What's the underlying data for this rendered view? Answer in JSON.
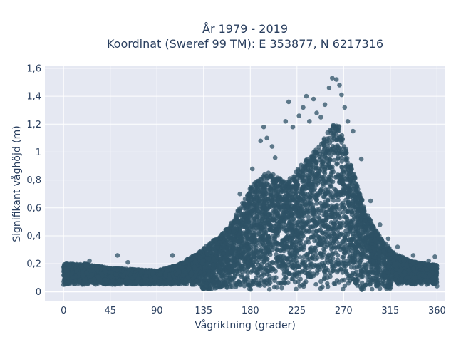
{
  "chart_data": {
    "type": "scatter",
    "title": "År 1979 - 2019",
    "subtitle": "Koordinat (Sweref 99 TM): E 353877, N 6217316",
    "xlabel": "Vågriktning (grader)",
    "ylabel": "Signifikant våghöjd (m)",
    "xlim": [
      -18,
      368
    ],
    "ylim": [
      -0.07,
      1.62
    ],
    "x_ticks": [
      0,
      45,
      90,
      135,
      180,
      225,
      270,
      315,
      360
    ],
    "x_tick_labels": [
      "0",
      "45",
      "90",
      "135",
      "180",
      "225",
      "270",
      "315",
      "360"
    ],
    "y_ticks": [
      0,
      0.2,
      0.4,
      0.6,
      0.8,
      1.0,
      1.2,
      1.4,
      1.6
    ],
    "y_tick_labels": [
      "0",
      "0,2",
      "0,4",
      "0,6",
      "0,8",
      "1",
      "1,2",
      "1,4",
      "1,6"
    ],
    "grid": true,
    "colors": {
      "marker": "#2e5266",
      "plot_bg": "#e5e8f2"
    },
    "envelope": {
      "x": [
        0,
        20,
        45,
        90,
        110,
        130,
        150,
        160,
        170,
        180,
        190,
        200,
        210,
        220,
        230,
        240,
        250,
        255,
        260,
        265,
        270,
        275,
        280,
        290,
        300,
        310,
        320,
        335,
        350,
        360
      ],
      "y_max": [
        0.2,
        0.2,
        0.17,
        0.15,
        0.19,
        0.28,
        0.4,
        0.47,
        0.6,
        0.75,
        0.82,
        0.87,
        0.8,
        0.82,
        0.92,
        1.0,
        1.08,
        1.15,
        1.2,
        1.2,
        1.1,
        0.95,
        0.85,
        0.6,
        0.45,
        0.35,
        0.27,
        0.22,
        0.2,
        0.19
      ]
    },
    "outliers": [
      {
        "x": 0,
        "y": 0.05
      },
      {
        "x": 3,
        "y": 0.2
      },
      {
        "x": 25,
        "y": 0.22
      },
      {
        "x": 52,
        "y": 0.26
      },
      {
        "x": 62,
        "y": 0.21
      },
      {
        "x": 105,
        "y": 0.26
      },
      {
        "x": 125,
        "y": 0.24
      },
      {
        "x": 168,
        "y": 0.58
      },
      {
        "x": 170,
        "y": 0.7
      },
      {
        "x": 182,
        "y": 0.88
      },
      {
        "x": 193,
        "y": 1.18
      },
      {
        "x": 190,
        "y": 1.08
      },
      {
        "x": 196,
        "y": 1.1
      },
      {
        "x": 201,
        "y": 1.04
      },
      {
        "x": 204,
        "y": 0.96
      },
      {
        "x": 214,
        "y": 1.22
      },
      {
        "x": 217,
        "y": 1.36
      },
      {
        "x": 221,
        "y": 1.18
      },
      {
        "x": 227,
        "y": 1.26
      },
      {
        "x": 231,
        "y": 1.32
      },
      {
        "x": 234,
        "y": 1.4
      },
      {
        "x": 237,
        "y": 1.22
      },
      {
        "x": 241,
        "y": 1.38
      },
      {
        "x": 244,
        "y": 1.28
      },
      {
        "x": 248,
        "y": 1.25
      },
      {
        "x": 252,
        "y": 1.34
      },
      {
        "x": 256,
        "y": 1.46
      },
      {
        "x": 259,
        "y": 1.53
      },
      {
        "x": 263,
        "y": 1.52
      },
      {
        "x": 266,
        "y": 1.48
      },
      {
        "x": 268,
        "y": 1.41
      },
      {
        "x": 271,
        "y": 1.32
      },
      {
        "x": 274,
        "y": 1.22
      },
      {
        "x": 279,
        "y": 1.15
      },
      {
        "x": 287,
        "y": 0.95
      },
      {
        "x": 296,
        "y": 0.65
      },
      {
        "x": 305,
        "y": 0.48
      },
      {
        "x": 313,
        "y": 0.38
      },
      {
        "x": 322,
        "y": 0.32
      },
      {
        "x": 337,
        "y": 0.26
      },
      {
        "x": 352,
        "y": 0.22
      },
      {
        "x": 358,
        "y": 0.25
      },
      {
        "x": 360,
        "y": 0.04
      }
    ]
  }
}
